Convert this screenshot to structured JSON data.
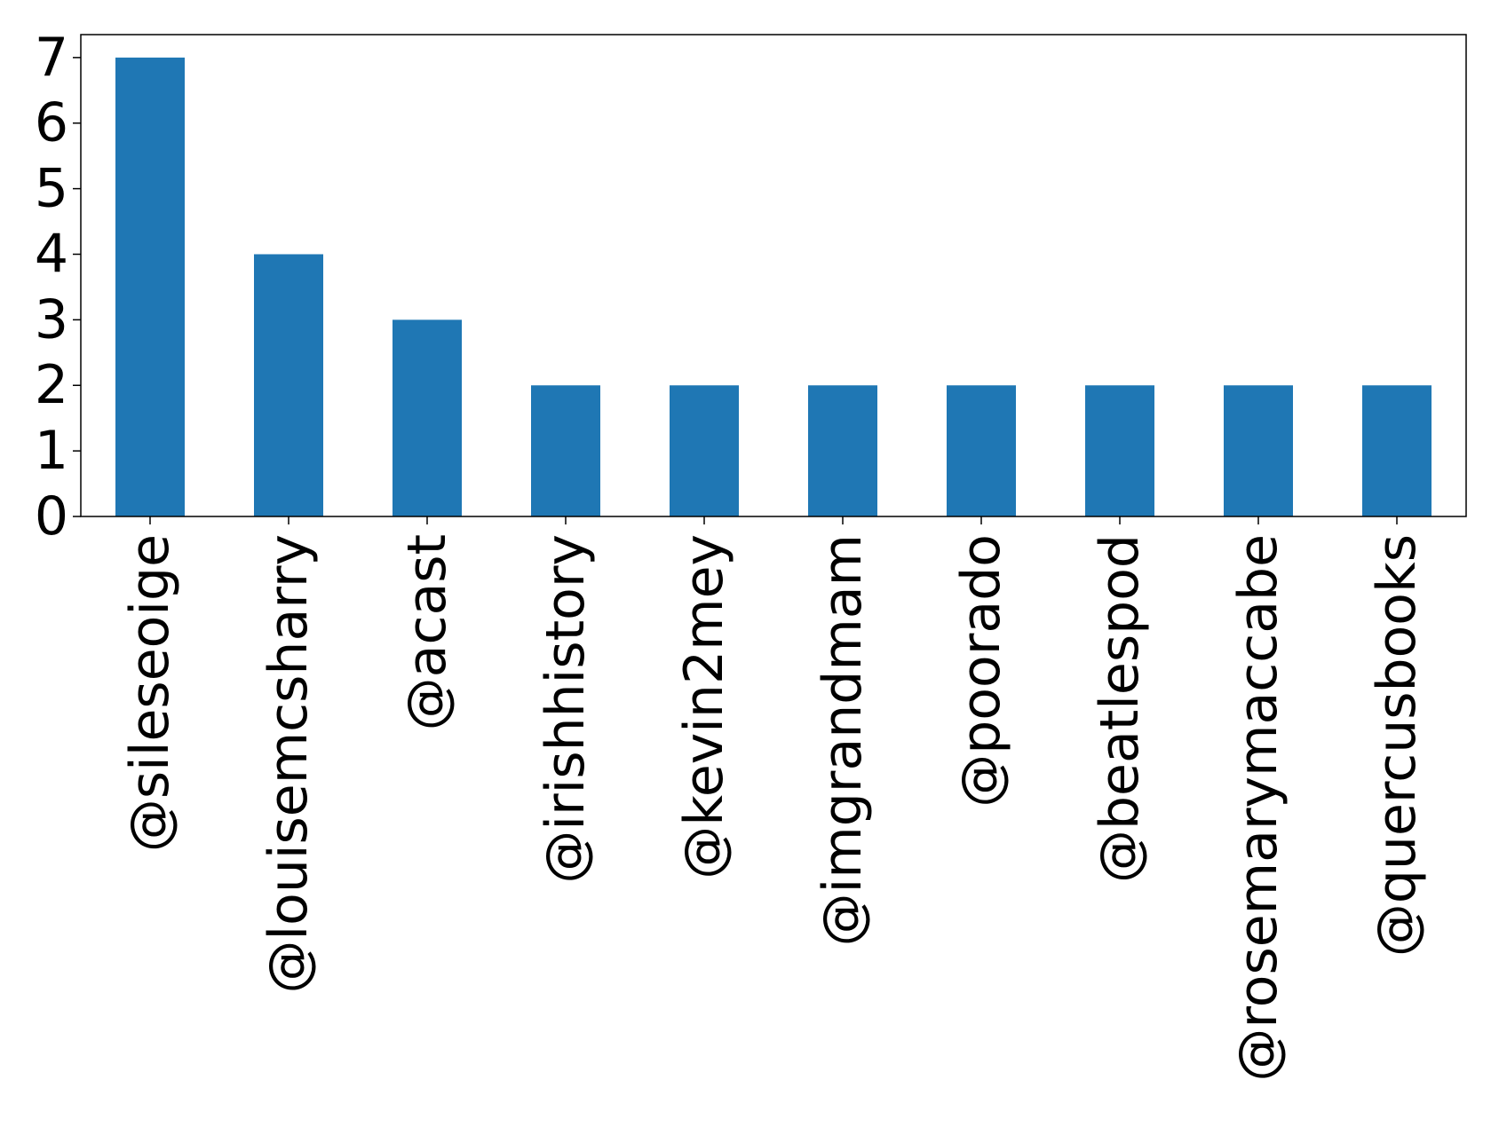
{
  "chart_data": {
    "type": "bar",
    "title": "",
    "xlabel": "",
    "ylabel": "",
    "categories": [
      "@sileseoige",
      "@louisemcsharry",
      "@acast",
      "@irishhistory",
      "@kevin2mey",
      "@imgrandmam",
      "@poorado",
      "@beatlespod",
      "@rosemarymaccabe",
      "@quercusbooks"
    ],
    "values": [
      7,
      4,
      3,
      2,
      2,
      2,
      2,
      2,
      2,
      2
    ],
    "ylim": [
      0,
      7.35
    ],
    "yticks": [
      0,
      1,
      2,
      3,
      4,
      5,
      6,
      7
    ],
    "grid": false,
    "legend": "none",
    "bar_color": "#1f77b4"
  }
}
